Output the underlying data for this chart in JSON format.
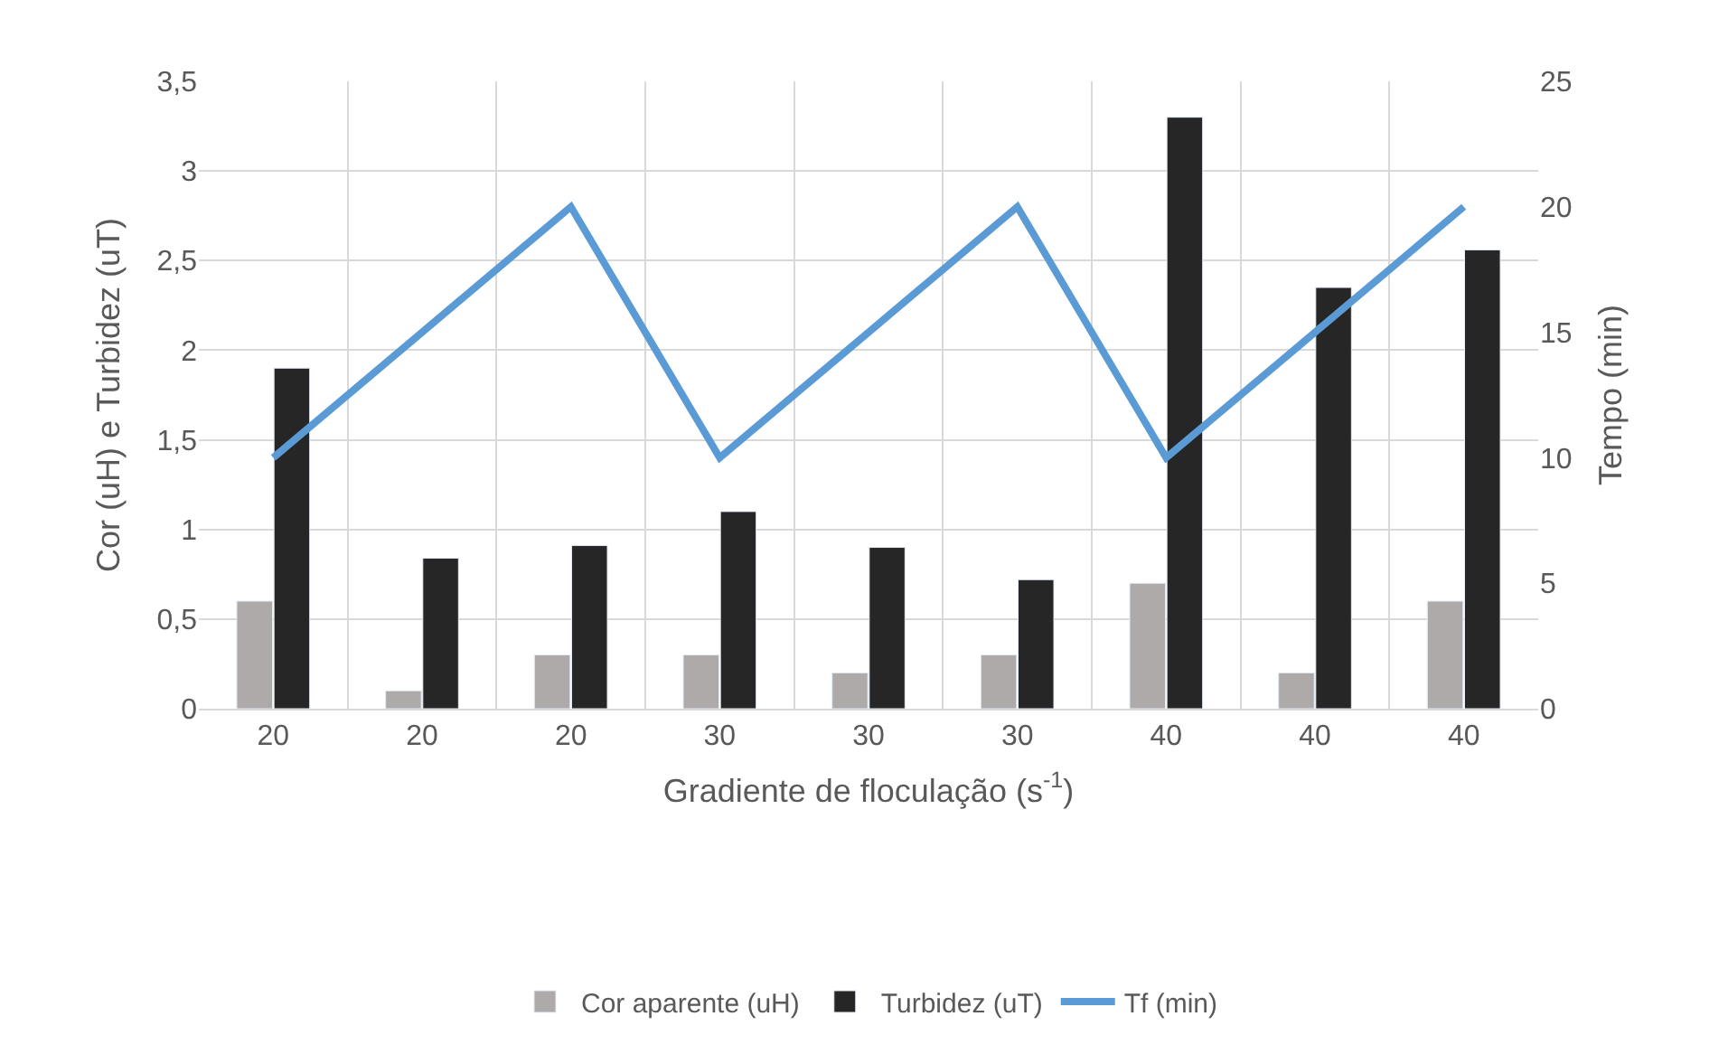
{
  "chart_data": {
    "type": "bar",
    "categories": [
      "20",
      "20",
      "20",
      "30",
      "30",
      "30",
      "40",
      "40",
      "40"
    ],
    "xlabel": "Gradiente de floculação (s$^{-1}$)",
    "ylabel": "Cor (uH) e Turbidez (uT)",
    "y2label": "Tempo (min)",
    "series": [
      {
        "name": "Cor aparente (uH)",
        "color": "#aeaaaa",
        "values": [
          0.6,
          0.1,
          0.3,
          0.3,
          0.2,
          0.3,
          0.7,
          0.2,
          0.6
        ]
      },
      {
        "name": "Turbidez (uT)",
        "color": "#262626",
        "values": [
          1.9,
          0.84,
          0.91,
          1.1,
          0.9,
          0.72,
          3.3,
          2.35,
          2.56
        ]
      },
      {
        "name": "Tf (min)",
        "type": "line",
        "axis": "y2",
        "color": "#5b9bd5",
        "values": [
          10,
          15,
          20,
          10,
          15,
          20,
          10,
          15,
          20
        ]
      }
    ],
    "ylim": [
      0,
      3.5
    ],
    "yticks": [
      0,
      {
        "value": 0.5,
        "label": "0,5"
      },
      1,
      {
        "value": 1.5,
        "label": "1,5"
      },
      2,
      {
        "value": 2.5,
        "label": "2,5"
      },
      3,
      {
        "value": 3.5,
        "label": "3,5"
      }
    ],
    "y2lim": [
      0,
      25
    ],
    "y2ticks": [
      0,
      5,
      10,
      15,
      20,
      25
    ],
    "grid": true,
    "legend": "bottom",
    "marker": "none"
  }
}
